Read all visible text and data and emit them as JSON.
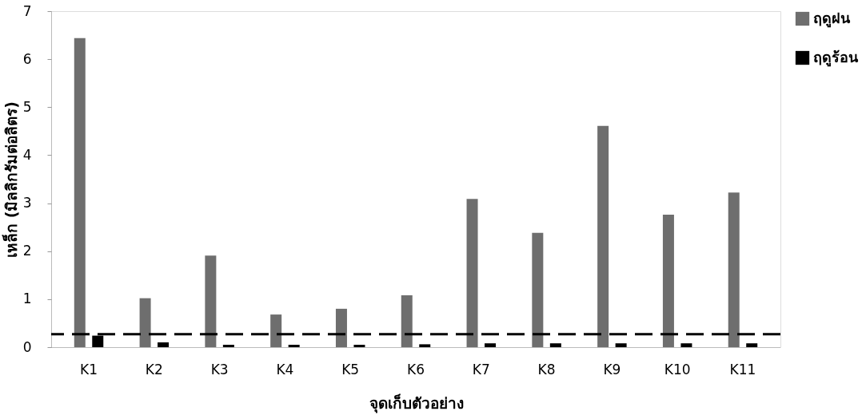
{
  "chart_data": {
    "type": "bar",
    "xlabel": "จุดเก็บตัวอย่าง",
    "ylabel": "เหล็ก (มิลลิกรัมต่อลิตร)",
    "categories": [
      "K1",
      "K2",
      "K3",
      "K4",
      "K5",
      "K6",
      "K7",
      "K8",
      "K9",
      "K10",
      "K11"
    ],
    "series": [
      {
        "name": "ฤดูฝน",
        "color": "#6e6e6e",
        "values": [
          6.44,
          1.02,
          1.91,
          0.68,
          0.8,
          1.08,
          3.09,
          2.38,
          4.61,
          2.76,
          3.22
        ]
      },
      {
        "name": "ฤดูร้อน",
        "color": "#000000",
        "values": [
          0.24,
          0.1,
          0.05,
          0.05,
          0.05,
          0.06,
          0.08,
          0.08,
          0.08,
          0.08,
          0.08
        ]
      }
    ],
    "ylim": [
      0,
      7
    ],
    "yticks": [
      0,
      1,
      2,
      3,
      4,
      5,
      6,
      7
    ],
    "ref_lines": [
      {
        "axis": "y",
        "value": 0.27,
        "color": "#000000",
        "line_style": "dashed"
      }
    ],
    "grid": false,
    "legend": "right"
  }
}
